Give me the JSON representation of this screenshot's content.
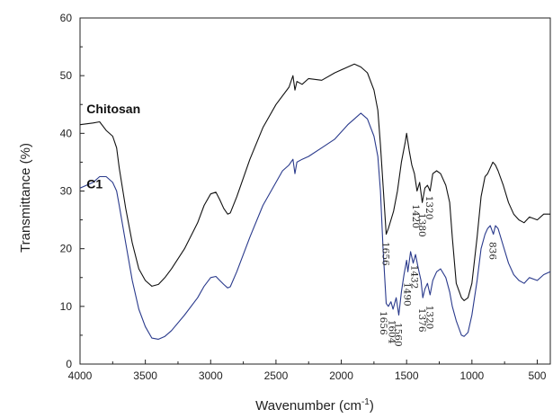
{
  "chart_data": {
    "type": "line",
    "title": "",
    "xlabel": "Wavenumber (cm",
    "xlabel_sup": "-1",
    "xlabel_suffix": ")",
    "ylabel": "Transmittance (%)",
    "xlim": [
      4000,
      400
    ],
    "ylim": [
      0,
      60
    ],
    "x_ticks": [
      4000,
      3500,
      3000,
      2500,
      2000,
      1500,
      1000,
      500
    ],
    "y_ticks": [
      0,
      10,
      20,
      30,
      40,
      50,
      60
    ],
    "grid": false,
    "legend": "none",
    "series": [
      {
        "name": "Chitosan",
        "color": "#111111",
        "points": [
          [
            4000,
            41.5
          ],
          [
            3900,
            41.8
          ],
          [
            3850,
            42.0
          ],
          [
            3800,
            40.5
          ],
          [
            3750,
            39.5
          ],
          [
            3720,
            37.5
          ],
          [
            3700,
            34.0
          ],
          [
            3650,
            27.0
          ],
          [
            3600,
            21.0
          ],
          [
            3550,
            16.5
          ],
          [
            3500,
            14.5
          ],
          [
            3450,
            13.5
          ],
          [
            3400,
            13.8
          ],
          [
            3350,
            15.0
          ],
          [
            3300,
            16.5
          ],
          [
            3200,
            20.0
          ],
          [
            3100,
            24.5
          ],
          [
            3050,
            27.5
          ],
          [
            3000,
            29.5
          ],
          [
            2960,
            29.8
          ],
          [
            2930,
            28.5
          ],
          [
            2900,
            27.0
          ],
          [
            2870,
            26.0
          ],
          [
            2850,
            26.2
          ],
          [
            2800,
            29.0
          ],
          [
            2700,
            35.5
          ],
          [
            2600,
            41.0
          ],
          [
            2500,
            45.0
          ],
          [
            2400,
            48.0
          ],
          [
            2370,
            50.0
          ],
          [
            2355,
            47.5
          ],
          [
            2340,
            49.0
          ],
          [
            2300,
            48.5
          ],
          [
            2250,
            49.5
          ],
          [
            2150,
            49.2
          ],
          [
            2050,
            50.5
          ],
          [
            1950,
            51.5
          ],
          [
            1900,
            52.0
          ],
          [
            1850,
            51.5
          ],
          [
            1800,
            50.5
          ],
          [
            1750,
            47.5
          ],
          [
            1720,
            44.0
          ],
          [
            1700,
            38.0
          ],
          [
            1680,
            31.0
          ],
          [
            1656,
            22.5
          ],
          [
            1640,
            23.5
          ],
          [
            1620,
            25.0
          ],
          [
            1600,
            26.5
          ],
          [
            1570,
            30.0
          ],
          [
            1540,
            35.0
          ],
          [
            1510,
            38.5
          ],
          [
            1500,
            40.0
          ],
          [
            1480,
            37.0
          ],
          [
            1460,
            34.5
          ],
          [
            1440,
            33.0
          ],
          [
            1420,
            30.0
          ],
          [
            1400,
            31.5
          ],
          [
            1380,
            28.0
          ],
          [
            1360,
            30.5
          ],
          [
            1340,
            31.0
          ],
          [
            1320,
            30.0
          ],
          [
            1300,
            33.0
          ],
          [
            1270,
            33.5
          ],
          [
            1240,
            33.0
          ],
          [
            1200,
            31.0
          ],
          [
            1170,
            28.0
          ],
          [
            1150,
            22.0
          ],
          [
            1120,
            14.0
          ],
          [
            1080,
            11.5
          ],
          [
            1060,
            11.0
          ],
          [
            1030,
            11.5
          ],
          [
            1000,
            14.0
          ],
          [
            960,
            22.0
          ],
          [
            930,
            29.0
          ],
          [
            900,
            32.5
          ],
          [
            880,
            33.0
          ],
          [
            860,
            34.0
          ],
          [
            840,
            35.0
          ],
          [
            820,
            34.5
          ],
          [
            800,
            33.5
          ],
          [
            760,
            31.0
          ],
          [
            720,
            28.0
          ],
          [
            680,
            26.0
          ],
          [
            640,
            25.0
          ],
          [
            600,
            24.5
          ],
          [
            560,
            25.5
          ],
          [
            500,
            25.0
          ],
          [
            450,
            26.0
          ],
          [
            400,
            26.0
          ]
        ]
      },
      {
        "name": "C1",
        "color": "#2a3a8c",
        "points": [
          [
            4000,
            30.5
          ],
          [
            3900,
            31.5
          ],
          [
            3850,
            32.5
          ],
          [
            3800,
            32.5
          ],
          [
            3750,
            31.5
          ],
          [
            3720,
            30.0
          ],
          [
            3700,
            27.5
          ],
          [
            3650,
            21.0
          ],
          [
            3600,
            14.5
          ],
          [
            3550,
            9.5
          ],
          [
            3500,
            6.5
          ],
          [
            3450,
            4.5
          ],
          [
            3400,
            4.3
          ],
          [
            3350,
            4.8
          ],
          [
            3300,
            5.8
          ],
          [
            3200,
            8.5
          ],
          [
            3100,
            11.5
          ],
          [
            3050,
            13.5
          ],
          [
            3000,
            15.0
          ],
          [
            2960,
            15.2
          ],
          [
            2930,
            14.5
          ],
          [
            2900,
            13.8
          ],
          [
            2870,
            13.2
          ],
          [
            2850,
            13.4
          ],
          [
            2800,
            16.0
          ],
          [
            2700,
            22.0
          ],
          [
            2600,
            27.5
          ],
          [
            2500,
            31.5
          ],
          [
            2450,
            33.5
          ],
          [
            2400,
            34.5
          ],
          [
            2370,
            35.5
          ],
          [
            2355,
            33.0
          ],
          [
            2340,
            35.0
          ],
          [
            2300,
            35.5
          ],
          [
            2250,
            36.0
          ],
          [
            2150,
            37.5
          ],
          [
            2050,
            39.0
          ],
          [
            1950,
            41.5
          ],
          [
            1900,
            42.5
          ],
          [
            1850,
            43.5
          ],
          [
            1800,
            42.5
          ],
          [
            1750,
            39.5
          ],
          [
            1720,
            36.0
          ],
          [
            1700,
            30.0
          ],
          [
            1680,
            20.0
          ],
          [
            1656,
            10.5
          ],
          [
            1640,
            10.0
          ],
          [
            1620,
            10.8
          ],
          [
            1604,
            9.5
          ],
          [
            1580,
            11.5
          ],
          [
            1560,
            8.5
          ],
          [
            1540,
            12.5
          ],
          [
            1520,
            15.5
          ],
          [
            1500,
            18.0
          ],
          [
            1490,
            16.0
          ],
          [
            1470,
            19.5
          ],
          [
            1450,
            17.5
          ],
          [
            1432,
            19.0
          ],
          [
            1410,
            16.5
          ],
          [
            1390,
            14.5
          ],
          [
            1376,
            11.5
          ],
          [
            1360,
            13.0
          ],
          [
            1340,
            14.0
          ],
          [
            1320,
            12.0
          ],
          [
            1300,
            14.5
          ],
          [
            1270,
            16.0
          ],
          [
            1240,
            16.5
          ],
          [
            1200,
            15.0
          ],
          [
            1170,
            12.5
          ],
          [
            1150,
            10.0
          ],
          [
            1120,
            7.5
          ],
          [
            1080,
            5.0
          ],
          [
            1060,
            4.8
          ],
          [
            1030,
            5.5
          ],
          [
            1000,
            8.5
          ],
          [
            960,
            14.5
          ],
          [
            930,
            20.0
          ],
          [
            900,
            22.5
          ],
          [
            880,
            23.5
          ],
          [
            860,
            24.0
          ],
          [
            836,
            22.5
          ],
          [
            820,
            24.0
          ],
          [
            800,
            23.5
          ],
          [
            760,
            20.5
          ],
          [
            720,
            17.5
          ],
          [
            680,
            15.5
          ],
          [
            640,
            14.5
          ],
          [
            600,
            14.0
          ],
          [
            560,
            15.0
          ],
          [
            500,
            14.5
          ],
          [
            450,
            15.5
          ],
          [
            400,
            16.0
          ]
        ]
      }
    ],
    "annotations": [
      {
        "text": "1656",
        "x": 1656,
        "y": 21.5,
        "rotate": 90,
        "anchor": "start"
      },
      {
        "text": "1420",
        "x": 1425,
        "y": 28.0,
        "rotate": 90,
        "anchor": "start"
      },
      {
        "text": "1380",
        "x": 1377,
        "y": 26.5,
        "rotate": 90,
        "anchor": "start"
      },
      {
        "text": "1320",
        "x": 1322,
        "y": 29.5,
        "rotate": 90,
        "anchor": "start"
      },
      {
        "text": "836",
        "x": 838,
        "y": 21.5,
        "rotate": 90,
        "anchor": "start"
      },
      {
        "text": "1656",
        "x": 1672,
        "y": 9.5,
        "rotate": 90,
        "anchor": "start"
      },
      {
        "text": "1604",
        "x": 1608,
        "y": 8.0,
        "rotate": 90,
        "anchor": "start"
      },
      {
        "text": "1560",
        "x": 1560,
        "y": 7.5,
        "rotate": 90,
        "anchor": "start"
      },
      {
        "text": "1490",
        "x": 1492,
        "y": 14.5,
        "rotate": 90,
        "anchor": "start"
      },
      {
        "text": "1432",
        "x": 1435,
        "y": 17.5,
        "rotate": 90,
        "anchor": "start"
      },
      {
        "text": "1376",
        "x": 1378,
        "y": 10.0,
        "rotate": 90,
        "anchor": "start"
      },
      {
        "text": "1320",
        "x": 1318,
        "y": 10.5,
        "rotate": 90,
        "anchor": "start"
      }
    ],
    "series_labels": [
      {
        "text": "Chitosan",
        "x": 3950,
        "y": 43.5
      },
      {
        "text": "C1",
        "x": 3950,
        "y": 30.5
      }
    ]
  }
}
